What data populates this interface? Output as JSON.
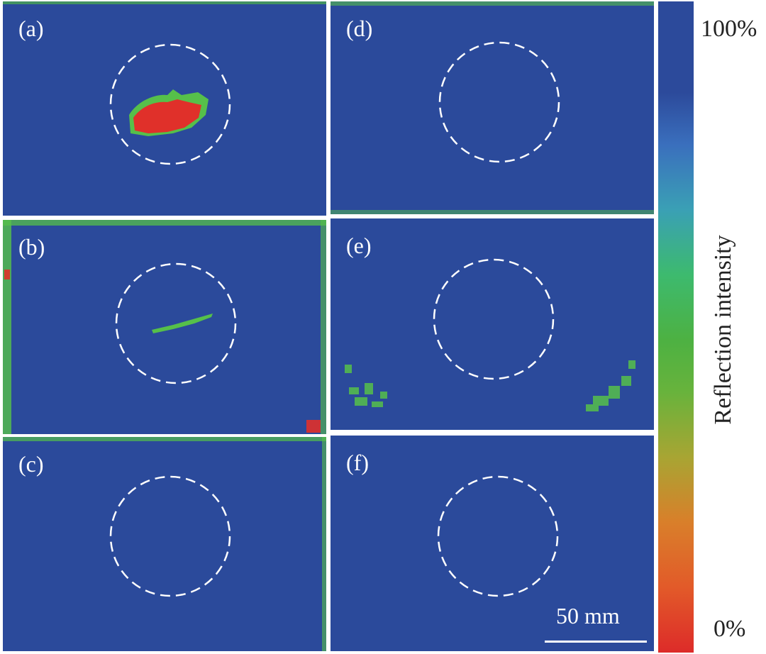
{
  "panels": [
    {
      "id": "a",
      "label": "(a)"
    },
    {
      "id": "d",
      "label": "(d)"
    },
    {
      "id": "b",
      "label": "(b)"
    },
    {
      "id": "e",
      "label": "(e)"
    },
    {
      "id": "c",
      "label": "(c)"
    },
    {
      "id": "f",
      "label": "(f)"
    }
  ],
  "colorbar": {
    "title": "Reflection intensity",
    "max_label": "100%",
    "min_label": "0%"
  },
  "scalebar": {
    "label": "50 mm"
  },
  "colors": {
    "background_blue": "#2b4a9b",
    "defect_red": "#e0302a",
    "defect_green": "#56c04a",
    "circle_white": "#ffffff"
  }
}
